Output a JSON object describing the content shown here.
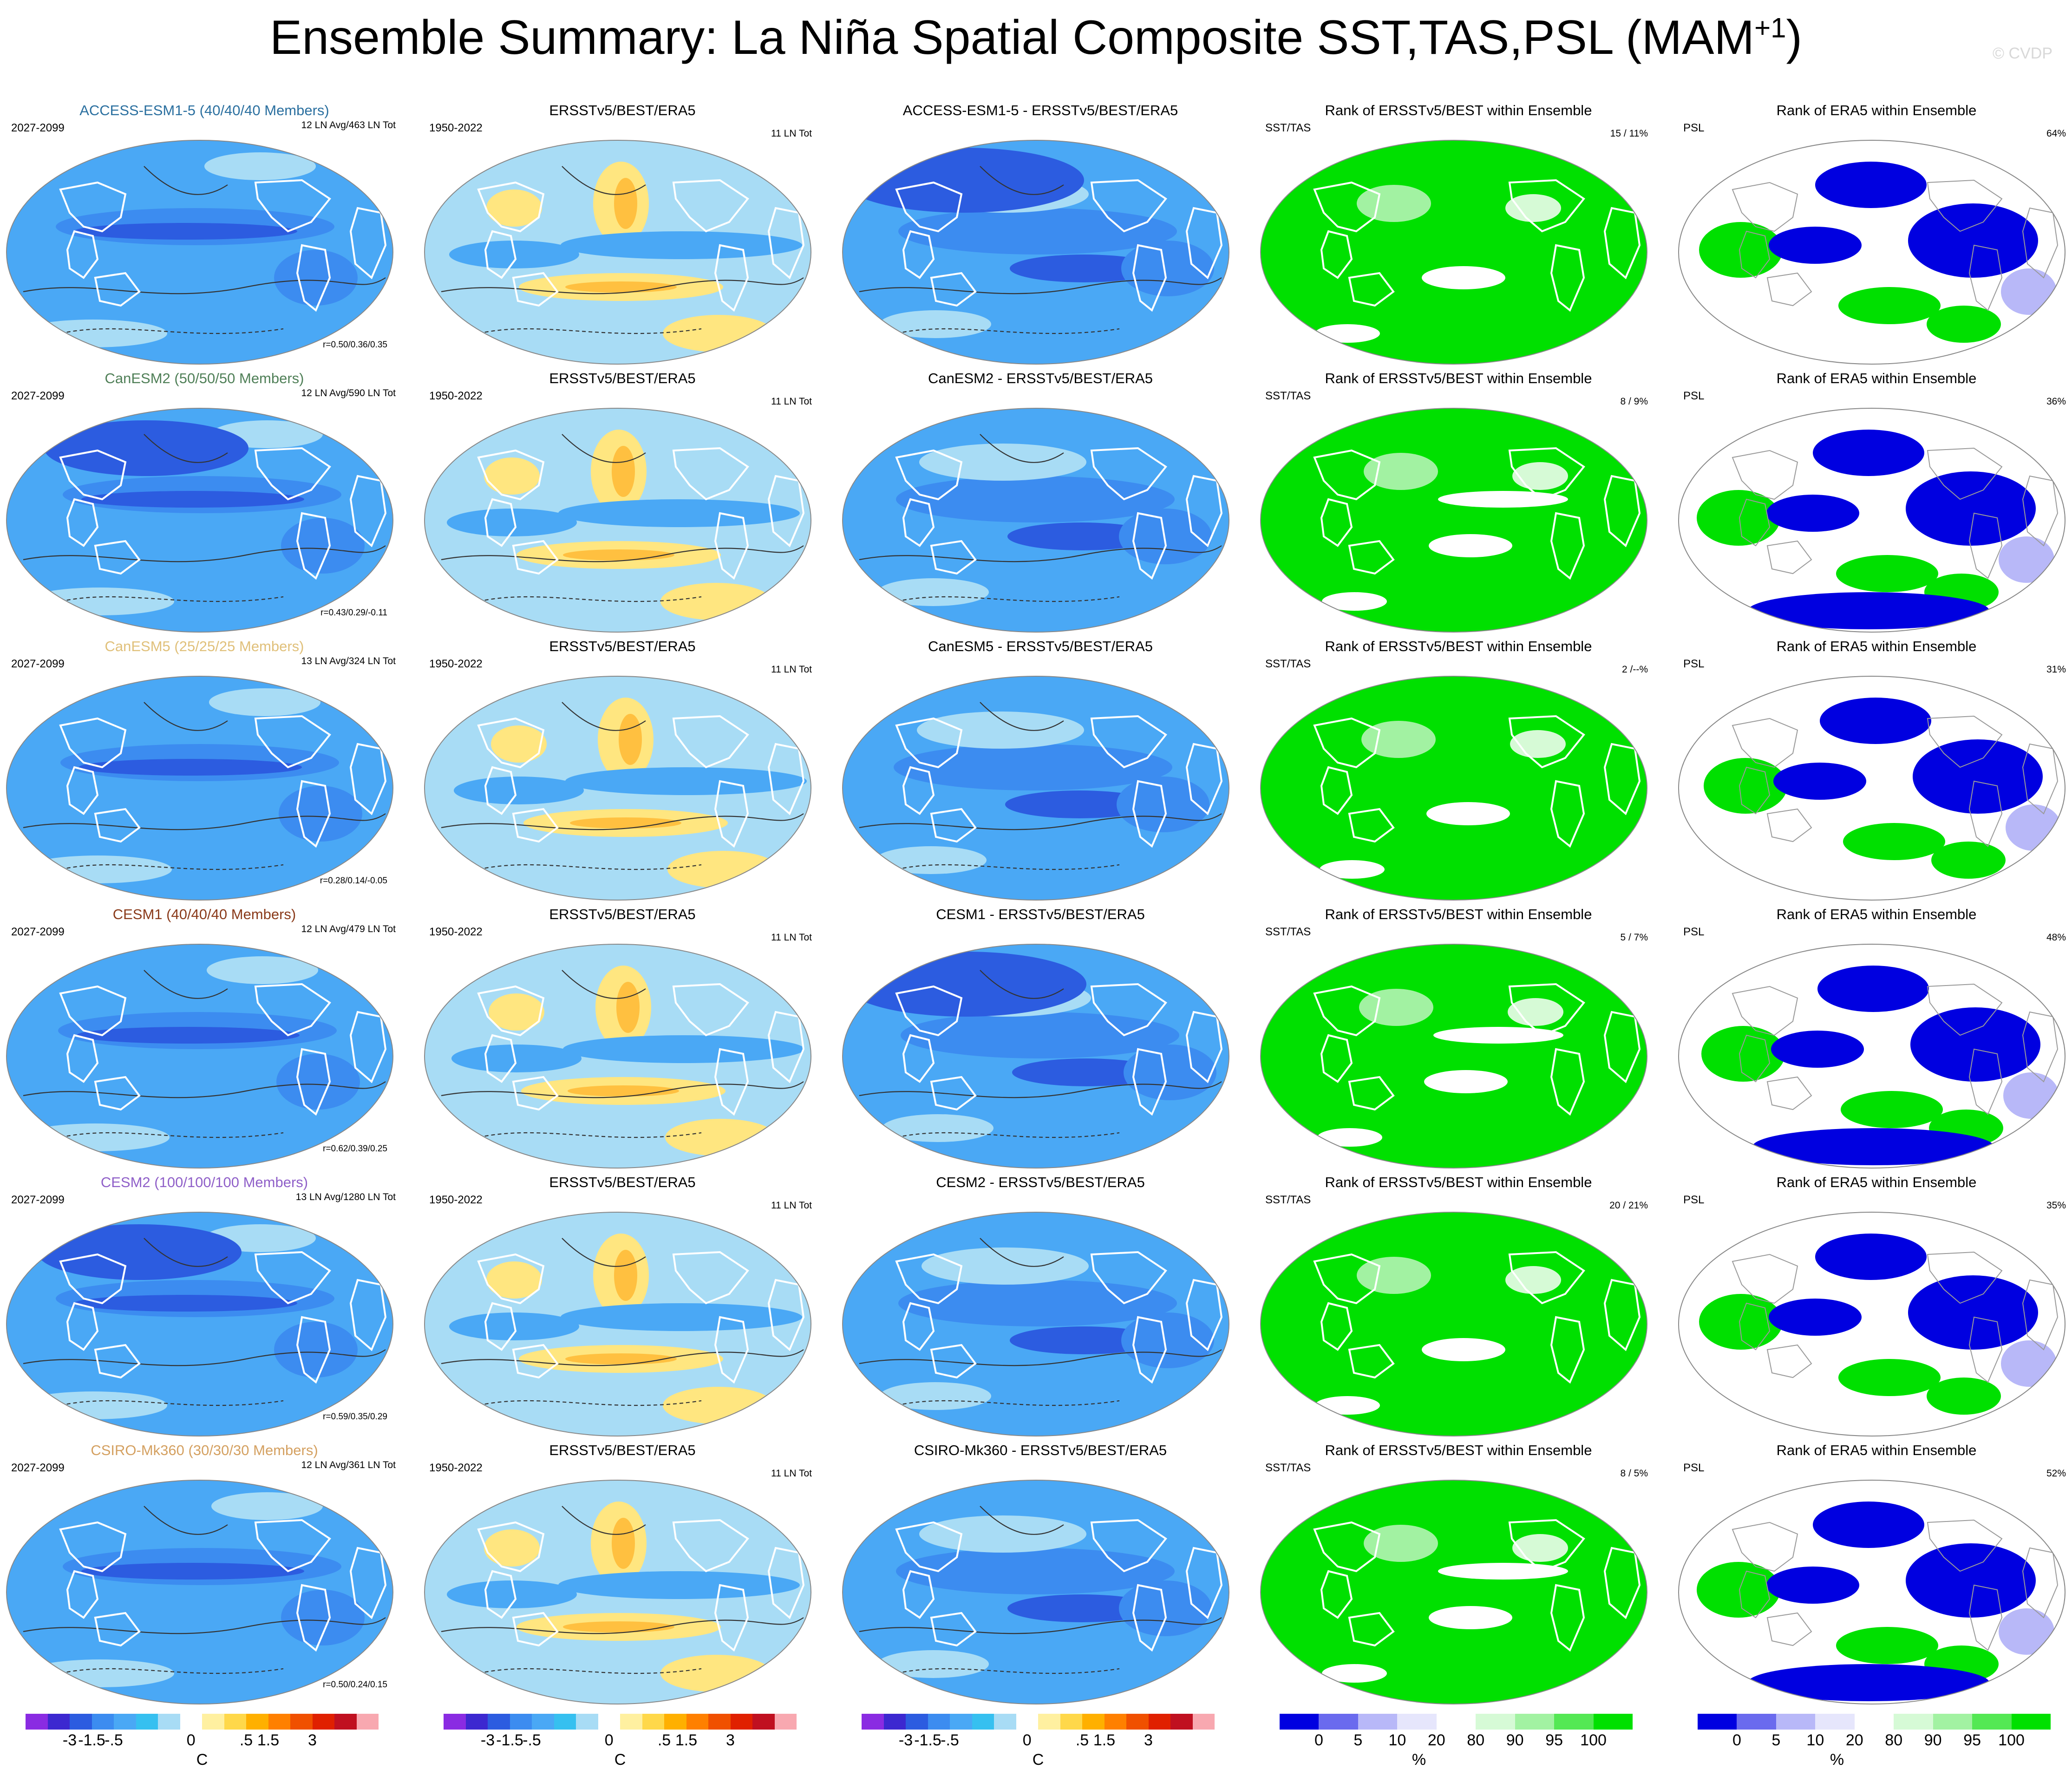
{
  "figure": {
    "title": "Ensemble Summary: La Niña Spatial Composite SST,TAS,PSL (MAM",
    "title_sup": "+1",
    "title_end": ")",
    "credit": "© CVDP"
  },
  "chart_data": {
    "type": "heatmap",
    "description_columns": [
      "model",
      "observations",
      "model_minus_obs",
      "rank_sst_tas",
      "rank_psl"
    ],
    "rows": [
      {
        "model_title": "ACCESS-ESM1-5 (40/40/40 Members)",
        "model_color": "#2a6f9f",
        "model_period": "2027-2099",
        "model_counts": "12 LN Avg/463 LN Tot",
        "model_corr": "r=0.50/0.36/0.35",
        "diff_title": "ACCESS-ESM1-5 - ERSSTv5/BEST/ERA5",
        "rank1_stat": "15 /  11%",
        "rank2_stat": "64%"
      },
      {
        "model_title": "CanESM2 (50/50/50 Members)",
        "model_color": "#4f7f57",
        "model_period": "2027-2099",
        "model_counts": "12 LN Avg/590 LN Tot",
        "model_corr": "r=0.43/0.29/-0.11",
        "diff_title": "CanESM2 - ERSSTv5/BEST/ERA5",
        "rank1_stat": "8 /  9%",
        "rank2_stat": "36%"
      },
      {
        "model_title": "CanESM5 (25/25/25 Members)",
        "model_color": "#e0c07a",
        "model_period": "2027-2099",
        "model_counts": "13 LN Avg/324 LN Tot",
        "model_corr": "r=0.28/0.14/-0.05",
        "diff_title": "CanESM5 - ERSSTv5/BEST/ERA5",
        "rank1_stat": "2 /--%",
        "rank2_stat": "31%"
      },
      {
        "model_title": "CESM1 (40/40/40 Members)",
        "model_color": "#8a3a1a",
        "model_period": "2027-2099",
        "model_counts": "12 LN Avg/479 LN Tot",
        "model_corr": "r=0.62/0.39/0.25",
        "diff_title": "CESM1 - ERSSTv5/BEST/ERA5",
        "rank1_stat": "5 /  7%",
        "rank2_stat": "48%"
      },
      {
        "model_title": "CESM2 (100/100/100 Members)",
        "model_color": "#8f5fc8",
        "model_period": "2027-2099",
        "model_counts": "13 LN Avg/1280 LN Tot",
        "model_corr": "r=0.59/0.35/0.29",
        "diff_title": "CESM2 - ERSSTv5/BEST/ERA5",
        "rank1_stat": "20 /  21%",
        "rank2_stat": "35%"
      },
      {
        "model_title": "CSIRO-Mk360 (30/30/30 Members)",
        "model_color": "#d4a060",
        "model_period": "2027-2099",
        "model_counts": "12 LN Avg/361 LN Tot",
        "model_corr": "r=0.50/0.24/0.15",
        "diff_title": "CSIRO-Mk360 - ERSSTv5/BEST/ERA5",
        "rank1_stat": "8 /  5%",
        "rank2_stat": "52%"
      }
    ],
    "obs": {
      "title": "ERSSTv5/BEST/ERA5",
      "period": "1950-2022",
      "counts": "11 LN Tot"
    },
    "rank1": {
      "title": "Rank of ERSSTv5/BEST within Ensemble",
      "label": "SST/TAS"
    },
    "rank2": {
      "title": "Rank of ERA5 within Ensemble",
      "label": "PSL"
    },
    "colorbar_temp": {
      "unit": "C",
      "tick_labels": [
        "-3",
        "-1.5",
        "-.5",
        "0",
        ".5",
        "1.5",
        "3"
      ],
      "colors": [
        "#8a2be2",
        "#3c28d0",
        "#2c5ce0",
        "#3c8cf0",
        "#4aa8f5",
        "#36c0f0",
        "#a8dcf5",
        "#ffffff",
        "#fff0a0",
        "#ffd84a",
        "#ffb000",
        "#ff8000",
        "#f05000",
        "#e02000",
        "#c01020",
        "#f8a8b0"
      ]
    },
    "colorbar_rank": {
      "unit": "%",
      "tick_labels": [
        "0",
        "5",
        "10",
        "20",
        "80",
        "90",
        "95",
        "100"
      ],
      "colors": [
        "#0000e0",
        "#6a6aee",
        "#b8b8f8",
        "#e6e6fc",
        "#ffffff",
        "#d6fad6",
        "#a2f2a2",
        "#54e854",
        "#00e000"
      ]
    }
  }
}
